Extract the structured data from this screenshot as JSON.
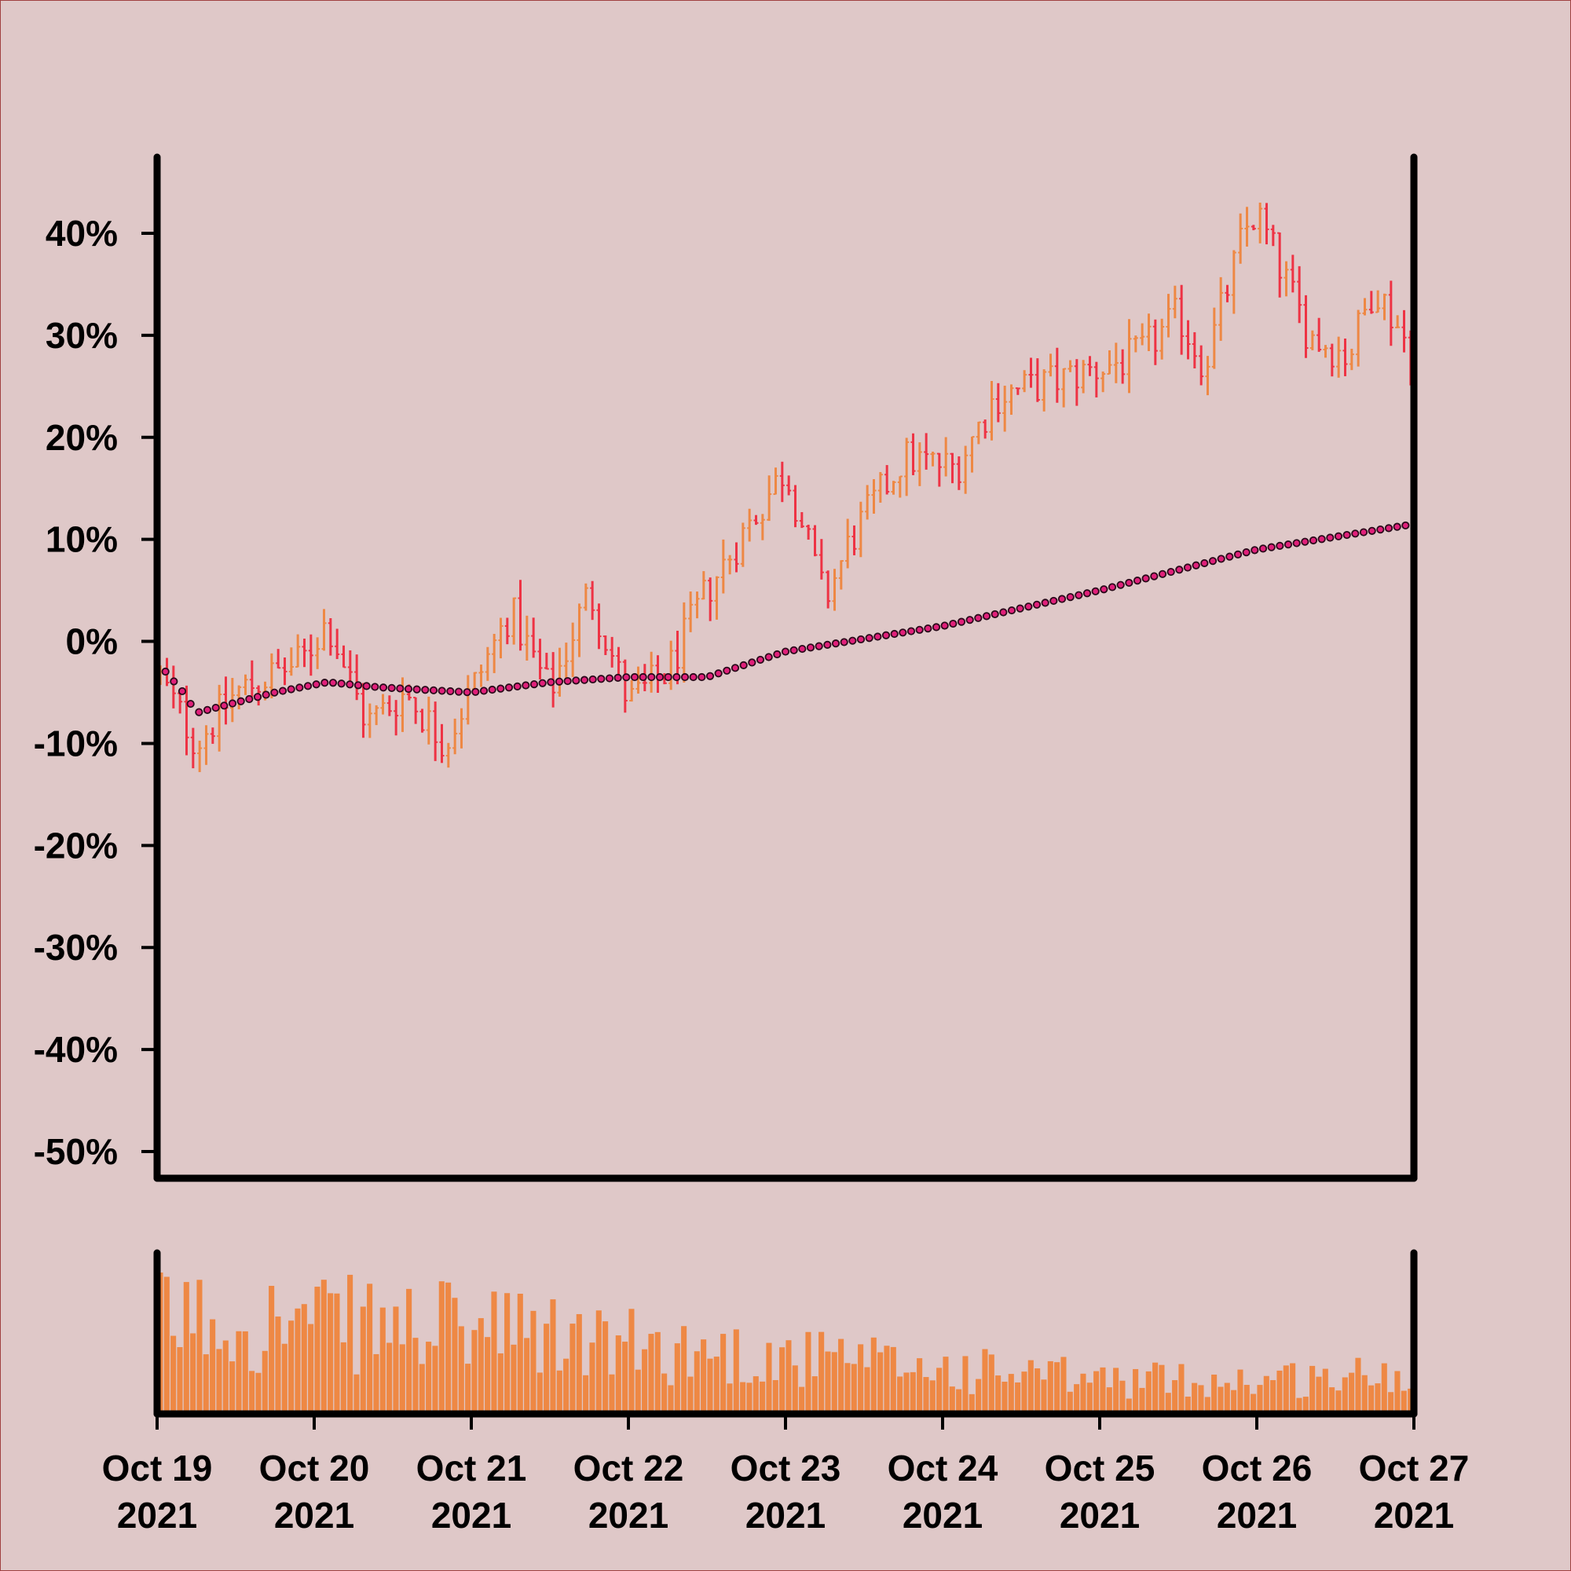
{
  "colors": {
    "background": "#dfc8c8",
    "border": "#a04040",
    "axis": "#000000",
    "up_bar": "#ee8844",
    "down_bar": "#ee3344",
    "volume": "#ee8844",
    "ma_fill": "#e0207a",
    "ma_stroke": "#2a0a1a"
  },
  "chart_data": {
    "type": "ohlc",
    "y_unit": "percent change",
    "ylim": [
      -50,
      45
    ],
    "y_ticks": [
      40,
      30,
      20,
      10,
      0,
      -10,
      -20,
      -30,
      -40,
      -50
    ],
    "y_tick_labels": [
      "40%",
      "30%",
      "20%",
      "10%",
      "0%",
      "-10%",
      "-20%",
      "-30%",
      "-40%",
      "-50%"
    ],
    "x_range": [
      "2021-10-19",
      "2021-10-27"
    ],
    "x_ticks": [
      "2021-10-19",
      "2021-10-20",
      "2021-10-21",
      "2021-10-22",
      "2021-10-23",
      "2021-10-24",
      "2021-10-25",
      "2021-10-26",
      "2021-10-27"
    ],
    "x_tick_labels": [
      {
        "line1": "Oct 19",
        "line2": "2021"
      },
      {
        "line1": "Oct 20",
        "line2": "2021"
      },
      {
        "line1": "Oct 21",
        "line2": "2021"
      },
      {
        "line1": "Oct 22",
        "line2": "2021"
      },
      {
        "line1": "Oct 23",
        "line2": "2021"
      },
      {
        "line1": "Oct 24",
        "line2": "2021"
      },
      {
        "line1": "Oct 25",
        "line2": "2021"
      },
      {
        "line1": "Oct 26",
        "line2": "2021"
      },
      {
        "line1": "Oct 27",
        "line2": "2021"
      }
    ],
    "bars_per_day": 24,
    "close_keypoints": [
      {
        "x": "2021-10-19 00:00",
        "y": -3
      },
      {
        "x": "2021-10-19 06:00",
        "y": -10
      },
      {
        "x": "2021-10-19 12:00",
        "y": -5
      },
      {
        "x": "2021-10-19 22:00",
        "y": -2
      },
      {
        "x": "2021-10-20 02:00",
        "y": 2
      },
      {
        "x": "2021-10-20 08:00",
        "y": -8
      },
      {
        "x": "2021-10-20 14:00",
        "y": -5
      },
      {
        "x": "2021-10-20 20:00",
        "y": -10
      },
      {
        "x": "2021-10-21 06:00",
        "y": 3
      },
      {
        "x": "2021-10-21 12:00",
        "y": -5
      },
      {
        "x": "2021-10-21 18:00",
        "y": 5
      },
      {
        "x": "2021-10-22 00:00",
        "y": -6
      },
      {
        "x": "2021-10-22 06:00",
        "y": -3
      },
      {
        "x": "2021-10-22 12:00",
        "y": 5
      },
      {
        "x": "2021-10-22 18:00",
        "y": 11
      },
      {
        "x": "2021-10-23 00:00",
        "y": 17
      },
      {
        "x": "2021-10-23 06:00",
        "y": 4
      },
      {
        "x": "2021-10-23 10:00",
        "y": 10
      },
      {
        "x": "2021-10-23 18:00",
        "y": 18
      },
      {
        "x": "2021-10-24 02:00",
        "y": 17
      },
      {
        "x": "2021-10-24 08:00",
        "y": 24
      },
      {
        "x": "2021-10-24 14:00",
        "y": 25
      },
      {
        "x": "2021-10-24 20:00",
        "y": 26
      },
      {
        "x": "2021-10-25 06:00",
        "y": 28
      },
      {
        "x": "2021-10-25 12:00",
        "y": 32
      },
      {
        "x": "2021-10-25 16:00",
        "y": 27
      },
      {
        "x": "2021-10-25 22:00",
        "y": 40
      },
      {
        "x": "2021-10-26 00:00",
        "y": 42
      },
      {
        "x": "2021-10-26 08:00",
        "y": 30
      },
      {
        "x": "2021-10-26 14:00",
        "y": 28
      },
      {
        "x": "2021-10-26 18:00",
        "y": 35
      },
      {
        "x": "2021-10-27 00:00",
        "y": 28
      }
    ],
    "moving_average_keypoints": [
      {
        "x": "2021-10-19 00:00",
        "y": -2
      },
      {
        "x": "2021-10-19 04:00",
        "y": -5
      },
      {
        "x": "2021-10-19 06:00",
        "y": -7
      },
      {
        "x": "2021-10-19 18:00",
        "y": -5
      },
      {
        "x": "2021-10-20 02:00",
        "y": -4
      },
      {
        "x": "2021-10-20 10:00",
        "y": -4.5
      },
      {
        "x": "2021-10-21 00:00",
        "y": -5
      },
      {
        "x": "2021-10-21 12:00",
        "y": -4
      },
      {
        "x": "2021-10-22 00:00",
        "y": -3.5
      },
      {
        "x": "2021-10-22 12:00",
        "y": -3.5
      },
      {
        "x": "2021-10-23 00:00",
        "y": -1
      },
      {
        "x": "2021-10-24 00:00",
        "y": 1.5
      },
      {
        "x": "2021-10-25 00:00",
        "y": 5
      },
      {
        "x": "2021-10-26 00:00",
        "y": 9
      },
      {
        "x": "2021-10-27 00:00",
        "y": 11.5
      }
    ],
    "volume_profile": [
      {
        "x": "2021-10-19",
        "level": 0.85
      },
      {
        "x": "2021-10-20",
        "level": 0.8
      },
      {
        "x": "2021-10-21",
        "level": 0.75
      },
      {
        "x": "2021-10-22",
        "level": 0.6
      },
      {
        "x": "2021-10-23",
        "level": 0.5
      },
      {
        "x": "2021-10-24",
        "level": 0.4
      },
      {
        "x": "2021-10-25",
        "level": 0.3
      },
      {
        "x": "2021-10-26",
        "level": 0.3
      },
      {
        "x": "2021-10-27",
        "level": 0.35
      }
    ],
    "grid": false,
    "legend": "none"
  }
}
